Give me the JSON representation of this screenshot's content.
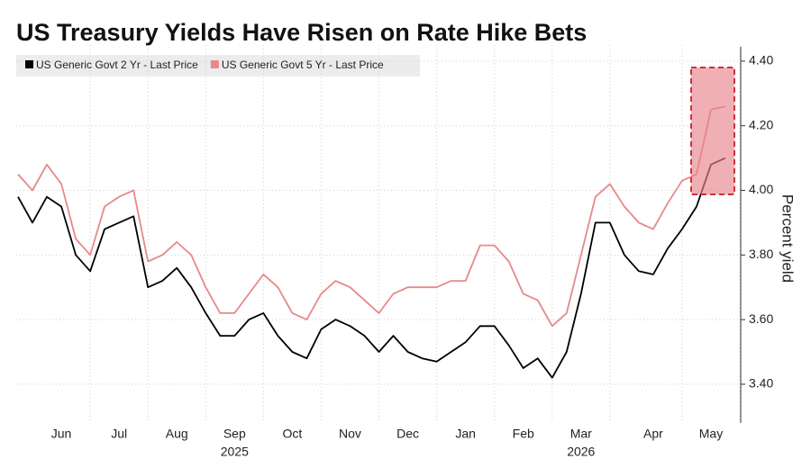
{
  "chart_data": {
    "type": "line",
    "title": "US Treasury Yields Have Risen on Rate Hike Bets",
    "y_axis_label": "Percent yield",
    "categories": [
      null,
      null,
      null,
      "Jun",
      null,
      null,
      null,
      "Jul",
      null,
      null,
      null,
      "Aug",
      null,
      null,
      null,
      "Sep",
      null,
      null,
      null,
      "Oct",
      null,
      null,
      null,
      "Nov",
      null,
      null,
      null,
      "Dec",
      null,
      null,
      null,
      "Jan",
      null,
      null,
      null,
      "Feb",
      null,
      null,
      null,
      "Mar",
      null,
      null,
      null,
      null,
      "Apr",
      null,
      null,
      null,
      "May",
      null
    ],
    "years": [
      null,
      null,
      null,
      null,
      null,
      null,
      null,
      null,
      null,
      null,
      null,
      null,
      null,
      null,
      null,
      "2025",
      null,
      null,
      null,
      null,
      null,
      null,
      null,
      null,
      null,
      null,
      null,
      null,
      null,
      null,
      null,
      null,
      null,
      null,
      null,
      null,
      null,
      null,
      null,
      "2026",
      null,
      null,
      null,
      null,
      null,
      null,
      null,
      null,
      null,
      null
    ],
    "series": [
      {
        "name": "US Generic Govt 2 Yr - Last Price",
        "color": "#000000",
        "values": [
          3.98,
          3.9,
          3.98,
          3.95,
          3.8,
          3.75,
          3.88,
          3.9,
          3.92,
          3.7,
          3.72,
          3.76,
          3.7,
          3.62,
          3.55,
          3.55,
          3.6,
          3.62,
          3.55,
          3.5,
          3.48,
          3.57,
          3.6,
          3.58,
          3.55,
          3.5,
          3.55,
          3.5,
          3.48,
          3.47,
          3.5,
          3.53,
          3.58,
          3.58,
          3.52,
          3.45,
          3.48,
          3.42,
          3.5,
          3.68,
          3.9,
          3.9,
          3.8,
          3.75,
          3.74,
          3.82,
          3.88,
          3.95,
          4.08,
          4.1
        ]
      },
      {
        "name": "US Generic Govt 5 Yr - Last Price",
        "color": "#e8888a",
        "values": [
          4.05,
          4.0,
          4.08,
          4.02,
          3.85,
          3.8,
          3.95,
          3.98,
          4.0,
          3.78,
          3.8,
          3.84,
          3.8,
          3.7,
          3.62,
          3.62,
          3.68,
          3.74,
          3.7,
          3.62,
          3.6,
          3.68,
          3.72,
          3.7,
          3.66,
          3.62,
          3.68,
          3.7,
          3.7,
          3.7,
          3.72,
          3.72,
          3.83,
          3.83,
          3.78,
          3.68,
          3.66,
          3.58,
          3.62,
          3.8,
          3.98,
          4.02,
          3.95,
          3.9,
          3.88,
          3.96,
          4.03,
          4.05,
          4.25,
          4.26
        ]
      }
    ],
    "ylim": [
      3.28,
      4.45
    ],
    "yticks": [
      {
        "value": 3.4,
        "label": "3.40"
      },
      {
        "value": 3.6,
        "label": "3.60"
      },
      {
        "value": 3.8,
        "label": "3.80"
      },
      {
        "value": 4.0,
        "label": "4.00"
      },
      {
        "value": 4.2,
        "label": "4.20"
      },
      {
        "value": 4.4,
        "label": "4.40"
      }
    ],
    "grid": true
  }
}
